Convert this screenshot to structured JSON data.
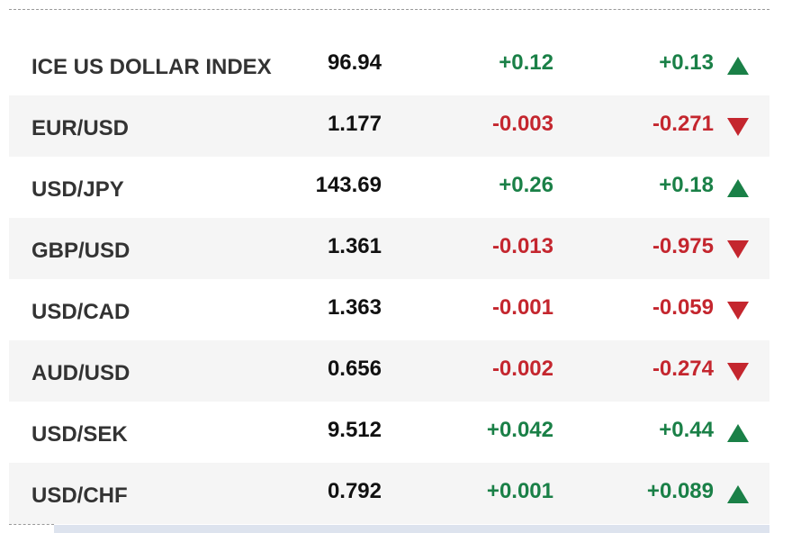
{
  "table": {
    "rows": [
      [
        "ICE US DOLLAR INDEX",
        "96.94",
        "+0.12",
        "+0.13"
      ],
      [
        "EUR/USD",
        "1.177",
        "-0.003",
        "-0.271"
      ],
      [
        "USD/JPY",
        "143.69",
        "+0.26",
        "+0.18"
      ],
      [
        "GBP/USD",
        "1.361",
        "-0.013",
        "-0.975"
      ],
      [
        "USD/CAD",
        "1.363",
        "-0.001",
        "-0.059"
      ],
      [
        "AUD/USD",
        "0.656",
        "-0.002",
        "-0.274"
      ],
      [
        "USD/SEK",
        "9.512",
        "+0.042",
        "+0.44"
      ],
      [
        "USD/CHF",
        "0.792",
        "+0.001",
        "+0.089"
      ]
    ]
  }
}
